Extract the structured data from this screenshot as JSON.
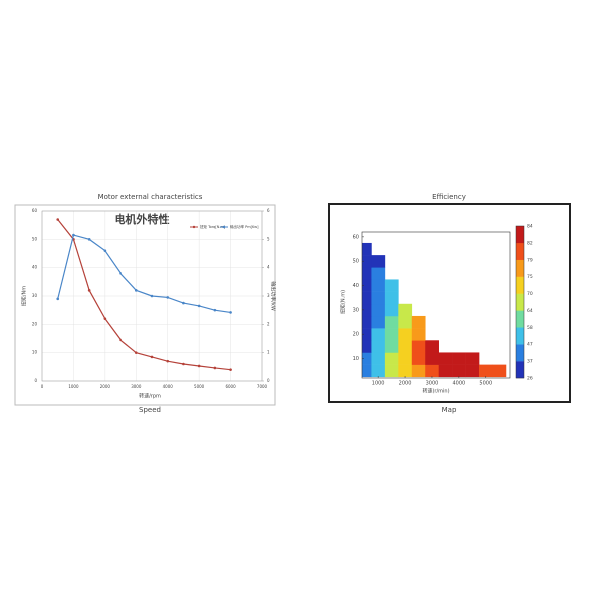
{
  "chart_data": [
    {
      "type": "line",
      "title": "Motor external characteristics",
      "caption": "Speed",
      "inner_title": "电机外特性",
      "x_label": "转速/rpm",
      "y_label": "扭矩/Nm",
      "y2_label": "输出功率/kW",
      "x": [
        500,
        1000,
        1500,
        2000,
        2500,
        3000,
        3500,
        4000,
        4500,
        5000,
        5500,
        6000
      ],
      "xlim": [
        0,
        7000
      ],
      "xticks": [
        0,
        1000,
        2000,
        3000,
        4000,
        5000,
        6000,
        7000
      ],
      "ylim": [
        0,
        60
      ],
      "yticks": [
        0,
        10,
        20,
        30,
        40,
        50,
        60
      ],
      "y2lim": [
        0,
        6
      ],
      "y2ticks": [
        0,
        1,
        2,
        3,
        4,
        5,
        6
      ],
      "series": [
        {
          "name": "扭矩 Torq[N.m]",
          "color": "#b5423a",
          "values": [
            57,
            50,
            32,
            22,
            14.5,
            10,
            8.5,
            7,
            6,
            5.3,
            4.6,
            4
          ]
        },
        {
          "name": "输出功率 Pm[Kw]",
          "color": "#4a86c8",
          "axis": "y2",
          "values": [
            2.9,
            5.15,
            5.0,
            4.6,
            3.8,
            3.2,
            3.0,
            2.95,
            2.75,
            2.65,
            2.5,
            2.42
          ]
        }
      ]
    },
    {
      "type": "heatmap",
      "title": "Efficiency",
      "caption": "Map",
      "x_label": "转速(r/min)",
      "y_label": "扭矩(N.m)",
      "xlim": [
        400,
        5900
      ],
      "xticks": [
        1000,
        2000,
        3000,
        4000,
        5000
      ],
      "ylim": [
        2,
        62
      ],
      "yticks": [
        10,
        20,
        30,
        40,
        50,
        60
      ],
      "x": [
        500,
        1000,
        1500,
        2000,
        2500,
        3000,
        3500,
        4000,
        4500,
        5000,
        5500
      ],
      "y": [
        5,
        10,
        15,
        20,
        25,
        30,
        35,
        40,
        45,
        50,
        55,
        60
      ],
      "z": [
        [
          40,
          55,
          64,
          72,
          78,
          80,
          82,
          82,
          82,
          80,
          79
        ],
        [
          38,
          52,
          64,
          72,
          79,
          82,
          84,
          84,
          83,
          null,
          null
        ],
        [
          35,
          50,
          62,
          72,
          79,
          82,
          null,
          null,
          null,
          null,
          null
        ],
        [
          33,
          48,
          60,
          70,
          78,
          null,
          null,
          null,
          null,
          null,
          null
        ],
        [
          32,
          46,
          58,
          68,
          76,
          null,
          null,
          null,
          null,
          null,
          null
        ],
        [
          30,
          44,
          56,
          66,
          null,
          null,
          null,
          null,
          null,
          null,
          null
        ],
        [
          29,
          42,
          54,
          null,
          null,
          null,
          null,
          null,
          null,
          null,
          null
        ],
        [
          28,
          40,
          52,
          null,
          null,
          null,
          null,
          null,
          null,
          null,
          null
        ],
        [
          27,
          38,
          null,
          null,
          null,
          null,
          null,
          null,
          null,
          null,
          null
        ],
        [
          26,
          36,
          null,
          null,
          null,
          null,
          null,
          null,
          null,
          null,
          null
        ],
        [
          26,
          null,
          null,
          null,
          null,
          null,
          null,
          null,
          null,
          null,
          null
        ],
        [
          null,
          null,
          null,
          null,
          null,
          null,
          null,
          null,
          null,
          null,
          null
        ]
      ],
      "levels": [
        26,
        37,
        47,
        58,
        64,
        70,
        75,
        79,
        82,
        84
      ],
      "level_colors": [
        "#2233b8",
        "#2a7fe0",
        "#3fc0e8",
        "#70dca0",
        "#c8e84a",
        "#f5d020",
        "#f89a1a",
        "#ef4f1a",
        "#c21a1a"
      ]
    }
  ]
}
